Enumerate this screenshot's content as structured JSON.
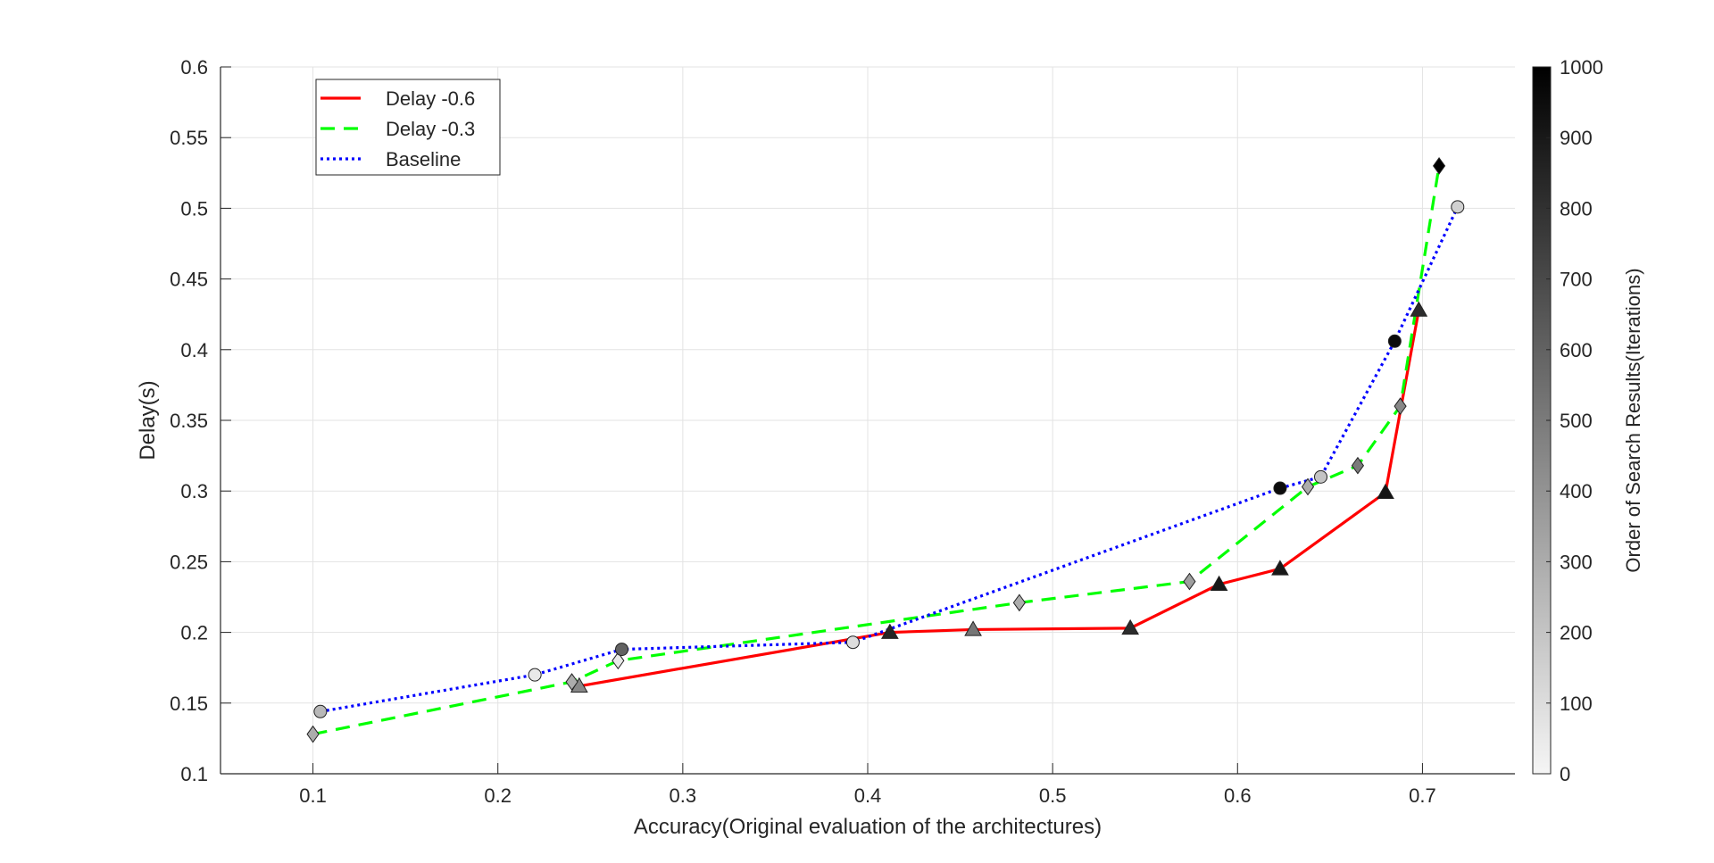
{
  "chart_data": {
    "type": "line",
    "title": "",
    "xlabel": "Accuracy(Original evaluation of the architectures)",
    "ylabel": "Delay(s)",
    "xlim": [
      0.05,
      0.75
    ],
    "ylim": [
      0.1,
      0.6
    ],
    "xticks": [
      0.1,
      0.2,
      0.3,
      0.4,
      0.5,
      0.6,
      0.7
    ],
    "yticks": [
      0.1,
      0.15,
      0.2,
      0.25,
      0.3,
      0.35,
      0.4,
      0.45,
      0.5,
      0.55,
      0.6
    ],
    "grid": true,
    "legend_position": "top-left",
    "colorbar": {
      "label": "Order of Search Results(Iterations)",
      "range": [
        0,
        1000
      ],
      "ticks": [
        0,
        100,
        200,
        300,
        400,
        500,
        600,
        700,
        800,
        900,
        1000
      ],
      "colormap": "gray-reversed"
    },
    "series": [
      {
        "name": "Delay -0.6",
        "color": "#ff0000",
        "line_style": "solid",
        "marker": "triangle",
        "points": [
          {
            "x": 0.244,
            "y": 0.162,
            "iter": 450
          },
          {
            "x": 0.412,
            "y": 0.2,
            "iter": 850
          },
          {
            "x": 0.457,
            "y": 0.202,
            "iter": 520
          },
          {
            "x": 0.542,
            "y": 0.203,
            "iter": 820
          },
          {
            "x": 0.59,
            "y": 0.234,
            "iter": 900
          },
          {
            "x": 0.623,
            "y": 0.245,
            "iter": 900
          },
          {
            "x": 0.68,
            "y": 0.299,
            "iter": 920
          },
          {
            "x": 0.698,
            "y": 0.428,
            "iter": 820
          }
        ]
      },
      {
        "name": "Delay -0.3",
        "color": "#00ff00",
        "line_style": "dashed",
        "marker": "diamond",
        "points": [
          {
            "x": 0.1,
            "y": 0.128,
            "iter": 300
          },
          {
            "x": 0.24,
            "y": 0.165,
            "iter": 300
          },
          {
            "x": 0.265,
            "y": 0.18,
            "iter": 50
          },
          {
            "x": 0.482,
            "y": 0.221,
            "iter": 300
          },
          {
            "x": 0.574,
            "y": 0.236,
            "iter": 350
          },
          {
            "x": 0.638,
            "y": 0.303,
            "iter": 300
          },
          {
            "x": 0.665,
            "y": 0.318,
            "iter": 500
          },
          {
            "x": 0.688,
            "y": 0.36,
            "iter": 450
          },
          {
            "x": 0.709,
            "y": 0.53,
            "iter": 1000
          }
        ]
      },
      {
        "name": "Baseline",
        "color": "#0000ff",
        "line_style": "dotted",
        "marker": "circle",
        "points": [
          {
            "x": 0.104,
            "y": 0.144,
            "iter": 250
          },
          {
            "x": 0.22,
            "y": 0.17,
            "iter": 50
          },
          {
            "x": 0.267,
            "y": 0.188,
            "iter": 600
          },
          {
            "x": 0.392,
            "y": 0.193,
            "iter": 100
          },
          {
            "x": 0.623,
            "y": 0.302,
            "iter": 950
          },
          {
            "x": 0.645,
            "y": 0.31,
            "iter": 200
          },
          {
            "x": 0.685,
            "y": 0.406,
            "iter": 950
          },
          {
            "x": 0.719,
            "y": 0.501,
            "iter": 150
          }
        ]
      }
    ]
  }
}
